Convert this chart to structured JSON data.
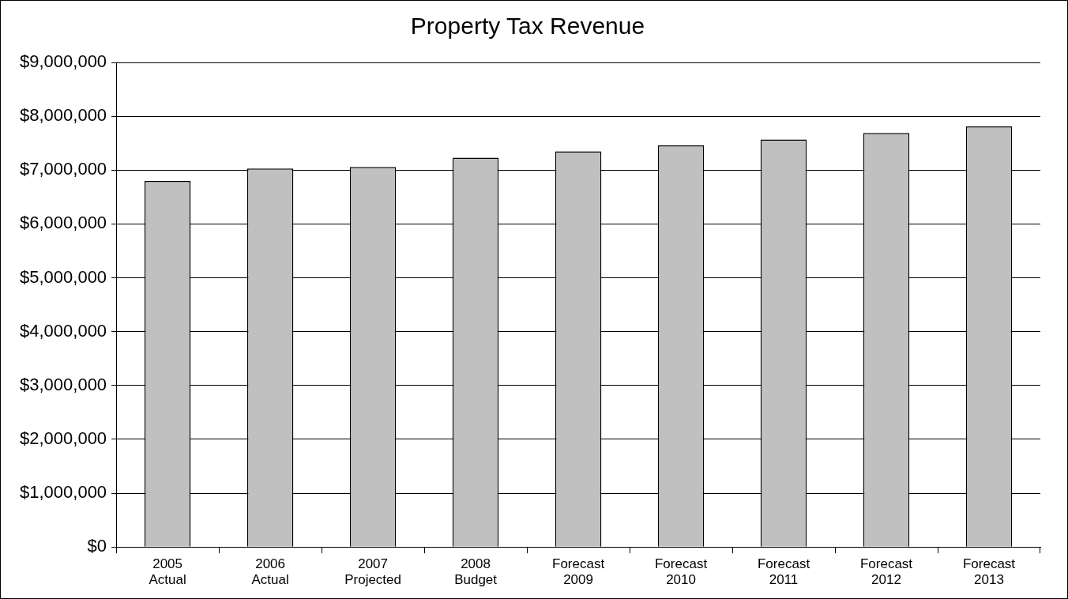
{
  "chart_data": {
    "type": "bar",
    "title": "Property Tax Revenue",
    "categories": [
      "2005\nActual",
      "2006\nActual",
      "2007\nProjected",
      "2008\nBudget",
      "Forecast\n2009",
      "Forecast\n2010",
      "Forecast\n2011",
      "Forecast\n2012",
      "Forecast\n2013"
    ],
    "values": [
      6800000,
      7030000,
      7060000,
      7230000,
      7350000,
      7460000,
      7570000,
      7690000,
      7810000
    ],
    "color": "#c0c0c0",
    "ylim": [
      0,
      9000000
    ],
    "yticks": [
      {
        "value": 0,
        "label": "$0"
      },
      {
        "value": 1000000,
        "label": "$1,000,000"
      },
      {
        "value": 2000000,
        "label": "$2,000,000"
      },
      {
        "value": 3000000,
        "label": "$3,000,000"
      },
      {
        "value": 4000000,
        "label": "$4,000,000"
      },
      {
        "value": 5000000,
        "label": "$5,000,000"
      },
      {
        "value": 6000000,
        "label": "$6,000,000"
      },
      {
        "value": 7000000,
        "label": "$7,000,000"
      },
      {
        "value": 8000000,
        "label": "$8,000,000"
      },
      {
        "value": 9000000,
        "label": "$9,000,000"
      }
    ],
    "grid": "y"
  }
}
